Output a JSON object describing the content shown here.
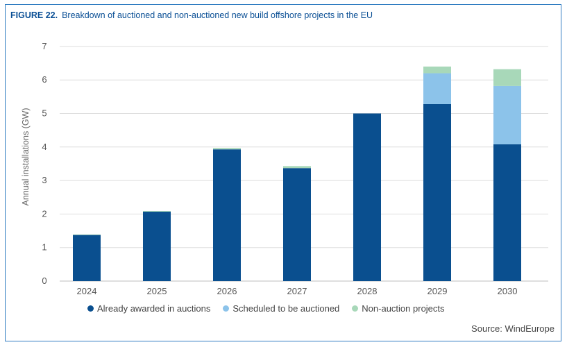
{
  "figure": {
    "number": "FIGURE 22.",
    "title": "Breakdown of auctioned and non-auctioned new build offshore projects in the EU",
    "source": "Source: WindEurope"
  },
  "chart_data": {
    "type": "bar",
    "stacked": true,
    "categories": [
      "2024",
      "2025",
      "2026",
      "2027",
      "2028",
      "2029",
      "2030"
    ],
    "series": [
      {
        "name": "Already awarded in auctions",
        "color": "#0a4f8f",
        "values": [
          1.38,
          2.07,
          3.93,
          3.37,
          5.0,
          5.28,
          4.08
        ]
      },
      {
        "name": "Scheduled to be auctioned",
        "color": "#8cc3ea",
        "values": [
          0,
          0,
          0,
          0,
          0,
          0.92,
          1.74
        ]
      },
      {
        "name": "Non-auction projects",
        "color": "#a8d8b9",
        "values": [
          0.01,
          0.02,
          0.04,
          0.06,
          0,
          0.2,
          0.5
        ]
      }
    ],
    "title": "",
    "xlabel": "",
    "ylabel": "Annual installations (GW)",
    "ylim": [
      0,
      7
    ],
    "yticks": [
      "0",
      "1",
      "2",
      "3",
      "4",
      "5",
      "6",
      "7"
    ],
    "grid": true,
    "legend": "bottom"
  }
}
